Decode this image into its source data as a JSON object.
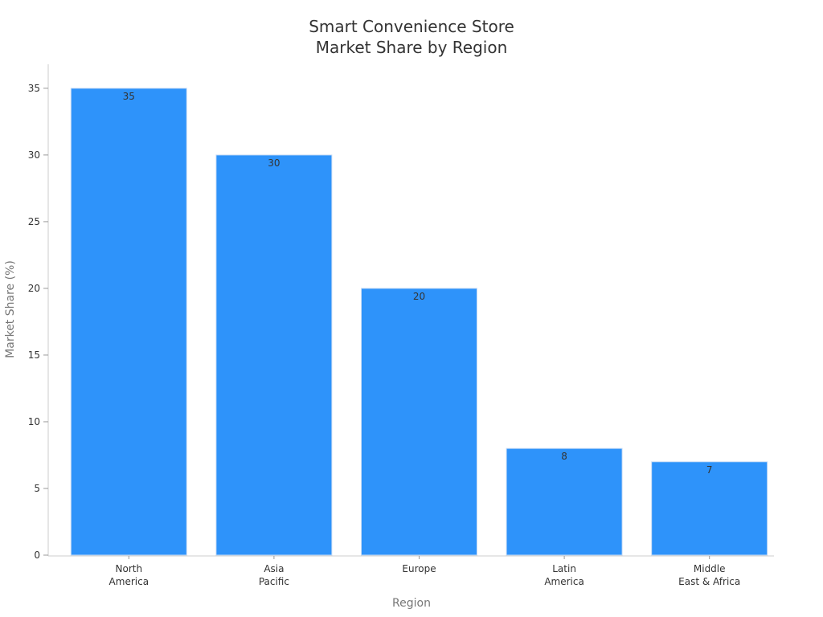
{
  "chart_data": {
    "type": "bar",
    "title": [
      "Smart Convenience Store",
      "Market Share by Region"
    ],
    "xlabel": "Region",
    "ylabel": "Market Share (%)",
    "categories": [
      [
        "North",
        "America"
      ],
      [
        "Asia",
        "Pacific"
      ],
      [
        "Europe"
      ],
      [
        "Latin",
        "America"
      ],
      [
        "Middle",
        "East & Africa"
      ]
    ],
    "values": [
      35,
      30,
      20,
      8,
      7
    ],
    "ylim": [
      0,
      36.8
    ],
    "yticks": [
      0,
      5,
      10,
      15,
      20,
      25,
      30,
      35
    ],
    "grid": false,
    "legend": "none",
    "colors": {
      "bar": "#2e93fa"
    }
  }
}
